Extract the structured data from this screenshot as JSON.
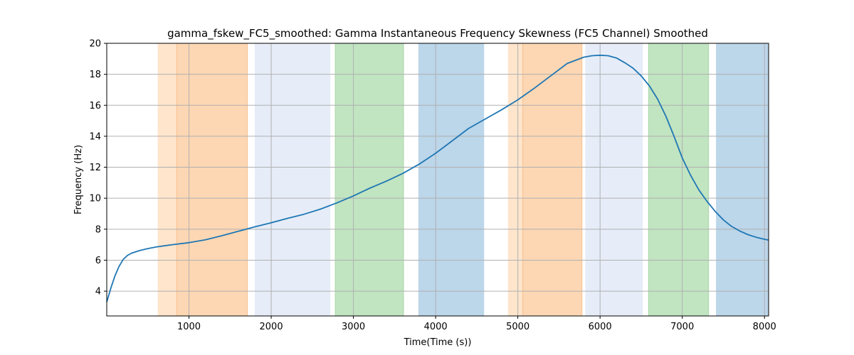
{
  "chart_data": {
    "type": "line",
    "title": "gamma_fskew_FC5_smoothed: Gamma Instantaneous Frequency Skewness (FC5 Channel) Smoothed",
    "xlabel": "Time(Time (s))",
    "ylabel": "Frequency (Hz)",
    "xlim": [
      0,
      8050
    ],
    "ylim": [
      2.4,
      20
    ],
    "xticks": [
      1000,
      2000,
      3000,
      4000,
      5000,
      6000,
      7000,
      8000
    ],
    "xtick_labels": [
      "1000",
      "2000",
      "3000",
      "4000",
      "5000",
      "6000",
      "7000",
      "8000"
    ],
    "yticks": [
      4,
      6,
      8,
      10,
      12,
      14,
      16,
      18,
      20
    ],
    "ytick_labels": [
      "4",
      "6",
      "8",
      "10",
      "12",
      "14",
      "16",
      "18",
      "20"
    ],
    "grid": true,
    "series": [
      {
        "color": "#1f77b4",
        "x": [
          0,
          50,
          100,
          150,
          200,
          250,
          300,
          400,
          500,
          600,
          700,
          800,
          1000,
          1200,
          1400,
          1600,
          1800,
          2000,
          2200,
          2400,
          2600,
          2800,
          3000,
          3200,
          3400,
          3600,
          3800,
          4000,
          4200,
          4400,
          4600,
          4800,
          5000,
          5200,
          5400,
          5600,
          5800,
          5900,
          6000,
          6100,
          6200,
          6300,
          6400,
          6500,
          6600,
          6700,
          6800,
          6900,
          7000,
          7100,
          7200,
          7300,
          7400,
          7500,
          7600,
          7700,
          7800,
          7900,
          8000,
          8050
        ],
        "y": [
          3.3,
          4.2,
          5.0,
          5.6,
          6.05,
          6.3,
          6.45,
          6.62,
          6.75,
          6.85,
          6.93,
          7.0,
          7.13,
          7.32,
          7.58,
          7.87,
          8.15,
          8.42,
          8.7,
          8.97,
          9.3,
          9.7,
          10.15,
          10.65,
          11.1,
          11.6,
          12.2,
          12.9,
          13.7,
          14.5,
          15.1,
          15.7,
          16.35,
          17.1,
          17.9,
          18.7,
          19.1,
          19.2,
          19.23,
          19.2,
          19.05,
          18.75,
          18.4,
          17.9,
          17.25,
          16.4,
          15.3,
          14.0,
          12.6,
          11.5,
          10.55,
          9.8,
          9.15,
          8.6,
          8.18,
          7.88,
          7.65,
          7.48,
          7.35,
          7.3
        ]
      }
    ],
    "bands": [
      {
        "x0": 620,
        "x1": 850,
        "color": "#ffe5cc"
      },
      {
        "x0": 850,
        "x1": 1710,
        "color": "#fdd7b3",
        "edge": "#f8c08f"
      },
      {
        "x0": 1800,
        "x1": 2720,
        "color": "#e6edf8"
      },
      {
        "x0": 2780,
        "x1": 3610,
        "color": "#c1e4c1",
        "edge": "#a9d8a9"
      },
      {
        "x0": 3790,
        "x1": 4590,
        "color": "#bcd6ea"
      },
      {
        "x0": 4880,
        "x1": 5060,
        "color": "#ffe5cc"
      },
      {
        "x0": 5060,
        "x1": 5780,
        "color": "#fdd7b3",
        "edge": "#f8c08f"
      },
      {
        "x0": 5820,
        "x1": 6520,
        "color": "#e6edf8"
      },
      {
        "x0": 6590,
        "x1": 7320,
        "color": "#c1e4c1",
        "edge": "#a9d8a9"
      },
      {
        "x0": 7410,
        "x1": 8050,
        "color": "#bcd6ea"
      }
    ]
  }
}
